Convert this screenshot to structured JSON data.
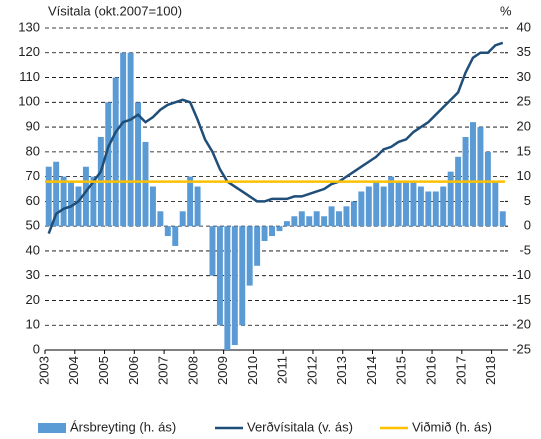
{
  "chart_data": {
    "type": "combo",
    "ylabel": "Vísitala (okt.2007=100)",
    "y2label": "%",
    "x": [
      2003.125,
      2003.375,
      2003.625,
      2003.875,
      2004.125,
      2004.375,
      2004.625,
      2004.875,
      2005.125,
      2005.375,
      2005.625,
      2005.875,
      2006.125,
      2006.375,
      2006.625,
      2006.875,
      2007.125,
      2007.375,
      2007.625,
      2007.875,
      2008.125,
      2008.375,
      2008.625,
      2008.875,
      2009.125,
      2009.375,
      2009.625,
      2009.875,
      2010.125,
      2010.375,
      2010.625,
      2010.875,
      2011.125,
      2011.375,
      2011.625,
      2011.875,
      2012.125,
      2012.375,
      2012.625,
      2012.875,
      2013.125,
      2013.375,
      2013.625,
      2013.875,
      2014.125,
      2014.375,
      2014.625,
      2014.875,
      2015.125,
      2015.375,
      2015.625,
      2015.875,
      2016.125,
      2016.375,
      2016.625,
      2016.875,
      2017.125,
      2017.375,
      2017.625,
      2017.875,
      2018.125,
      2018.375
    ],
    "xlim": [
      2003,
      2018.45
    ],
    "xticks": [
      2003,
      2004,
      2005,
      2006,
      2007,
      2008,
      2009,
      2010,
      2011,
      2012,
      2013,
      2014,
      2015,
      2016,
      2017,
      2018
    ],
    "ylim": [
      0,
      130
    ],
    "yticks": [
      0,
      10,
      20,
      30,
      40,
      50,
      60,
      70,
      80,
      90,
      100,
      110,
      120,
      130
    ],
    "y2lim": [
      -25,
      40
    ],
    "y2ticks": [
      -25,
      -20,
      -15,
      -10,
      -5,
      0,
      5,
      10,
      15,
      20,
      25,
      30,
      35,
      40
    ],
    "grid": true,
    "series": [
      {
        "name": "Ársbreyting (h. ás)",
        "type": "bar",
        "axis": "y2",
        "color": "#5b9bd5",
        "values": [
          12,
          13,
          10,
          9,
          8,
          12,
          10,
          18,
          25,
          30,
          35,
          35,
          25,
          17,
          8,
          3,
          -2,
          -4,
          3,
          10,
          8,
          0,
          -10,
          -20,
          -25,
          -24,
          -20,
          -12,
          -8,
          -3,
          -2,
          -1,
          1,
          2,
          3,
          2,
          3,
          2,
          4,
          3,
          4,
          5,
          7,
          8,
          9,
          8,
          10,
          9,
          9,
          9,
          8,
          7,
          7,
          8,
          11,
          14,
          18,
          21,
          20,
          15,
          9,
          3
        ]
      },
      {
        "name": "Verðvísitala (v. ás)",
        "type": "line",
        "color": "#1f4e79",
        "values": [
          47,
          55,
          57,
          58,
          60,
          64,
          68,
          72,
          82,
          88,
          92,
          93,
          95,
          92,
          94,
          97,
          99,
          100,
          101,
          100,
          93,
          85,
          80,
          73,
          68,
          66,
          64,
          62,
          60,
          60,
          61,
          61,
          61,
          62,
          62,
          63,
          64,
          65,
          67,
          68,
          70,
          72,
          74,
          76,
          78,
          81,
          82,
          84,
          85,
          88,
          90,
          92,
          95,
          98,
          101,
          104,
          112,
          118,
          120,
          120,
          123,
          124
        ]
      }
    ],
    "reference": {
      "name": "Viðmið (h. ás)",
      "value": 9,
      "axis": "y2",
      "color": "#ffc000"
    }
  }
}
